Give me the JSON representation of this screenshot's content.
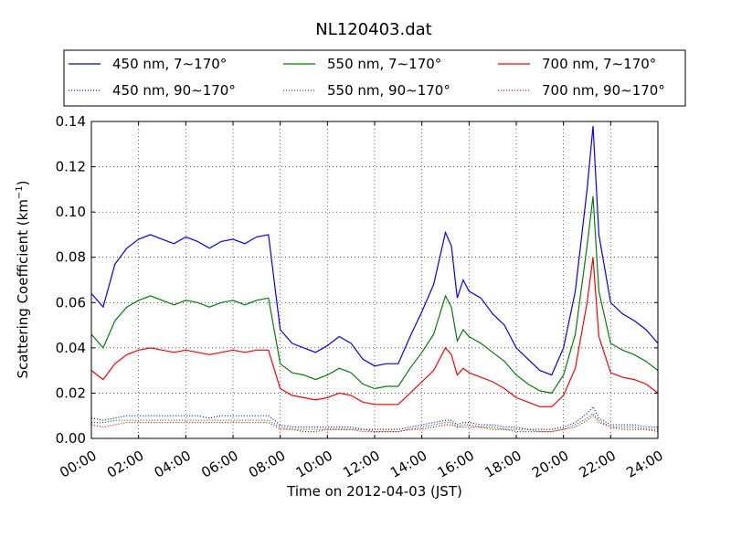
{
  "chart_data": {
    "type": "line",
    "title": "NL120403.dat",
    "xlabel": "Time on 2012-04-03 (JST)",
    "ylabel_main": "Scattering Coefficient (km",
    "ylabel_sup": "−1",
    "ylabel_end": ")",
    "xlim": [
      0,
      24
    ],
    "ylim": [
      0,
      0.14
    ],
    "grid": true,
    "legend_position": "top",
    "x_ticks": [
      "00:00",
      "02:00",
      "04:00",
      "06:00",
      "08:00",
      "10:00",
      "12:00",
      "14:00",
      "16:00",
      "18:00",
      "20:00",
      "22:00",
      "24:00"
    ],
    "y_ticks": [
      "0.00",
      "0.02",
      "0.04",
      "0.06",
      "0.08",
      "0.10",
      "0.12",
      "0.14"
    ],
    "x_tick_values": [
      0,
      2,
      4,
      6,
      8,
      10,
      12,
      14,
      16,
      18,
      20,
      22,
      24
    ],
    "y_tick_values": [
      0,
      0.02,
      0.04,
      0.06,
      0.08,
      0.1,
      0.12,
      0.14
    ],
    "x": [
      0,
      0.5,
      1,
      1.5,
      2,
      2.5,
      3,
      3.5,
      4,
      4.5,
      5,
      5.5,
      6,
      6.5,
      7,
      7.5,
      8,
      8.5,
      9,
      9.5,
      10,
      10.5,
      11,
      11.5,
      12,
      12.5,
      13,
      13.5,
      14,
      14.5,
      15,
      15.25,
      15.5,
      15.75,
      16,
      16.5,
      17,
      17.5,
      18,
      18.5,
      19,
      19.5,
      20,
      20.5,
      21,
      21.25,
      21.5,
      22,
      22.5,
      23,
      23.5,
      24
    ],
    "series": [
      {
        "name": "450 nm, 7∼170°",
        "color": "#0000ff",
        "style": "solid",
        "values": [
          0.064,
          0.058,
          0.077,
          0.084,
          0.088,
          0.09,
          0.088,
          0.086,
          0.089,
          0.087,
          0.084,
          0.087,
          0.088,
          0.086,
          0.089,
          0.09,
          0.048,
          0.042,
          0.04,
          0.038,
          0.041,
          0.045,
          0.042,
          0.035,
          0.032,
          0.033,
          0.033,
          0.045,
          0.056,
          0.068,
          0.091,
          0.085,
          0.062,
          0.07,
          0.065,
          0.062,
          0.055,
          0.05,
          0.04,
          0.035,
          0.03,
          0.028,
          0.04,
          0.065,
          0.11,
          0.138,
          0.09,
          0.06,
          0.055,
          0.052,
          0.048,
          0.042
        ]
      },
      {
        "name": "550 nm, 7∼170°",
        "color": "#008000",
        "style": "solid",
        "values": [
          0.046,
          0.04,
          0.052,
          0.058,
          0.061,
          0.063,
          0.061,
          0.059,
          0.061,
          0.06,
          0.058,
          0.06,
          0.061,
          0.059,
          0.061,
          0.062,
          0.033,
          0.029,
          0.028,
          0.026,
          0.028,
          0.031,
          0.029,
          0.024,
          0.022,
          0.023,
          0.023,
          0.031,
          0.038,
          0.046,
          0.063,
          0.058,
          0.043,
          0.048,
          0.045,
          0.042,
          0.038,
          0.034,
          0.028,
          0.024,
          0.021,
          0.02,
          0.028,
          0.046,
          0.085,
          0.107,
          0.065,
          0.042,
          0.039,
          0.037,
          0.034,
          0.03
        ]
      },
      {
        "name": "700 nm, 7∼170°",
        "color": "#ff0000",
        "style": "solid",
        "values": [
          0.03,
          0.026,
          0.033,
          0.037,
          0.039,
          0.04,
          0.039,
          0.038,
          0.039,
          0.038,
          0.037,
          0.038,
          0.039,
          0.038,
          0.039,
          0.039,
          0.022,
          0.019,
          0.018,
          0.017,
          0.018,
          0.02,
          0.019,
          0.016,
          0.015,
          0.015,
          0.015,
          0.02,
          0.025,
          0.03,
          0.04,
          0.037,
          0.028,
          0.031,
          0.029,
          0.027,
          0.025,
          0.022,
          0.018,
          0.016,
          0.014,
          0.014,
          0.019,
          0.031,
          0.06,
          0.08,
          0.045,
          0.029,
          0.027,
          0.026,
          0.024,
          0.02
        ]
      },
      {
        "name": "450 nm, 90∼170°",
        "color": "#0000ff",
        "style": "dotted",
        "values": [
          0.009,
          0.008,
          0.009,
          0.01,
          0.01,
          0.01,
          0.01,
          0.01,
          0.01,
          0.01,
          0.009,
          0.01,
          0.01,
          0.01,
          0.01,
          0.01,
          0.006,
          0.005,
          0.005,
          0.005,
          0.005,
          0.005,
          0.005,
          0.004,
          0.004,
          0.004,
          0.004,
          0.005,
          0.006,
          0.007,
          0.008,
          0.008,
          0.006,
          0.007,
          0.007,
          0.006,
          0.006,
          0.005,
          0.005,
          0.004,
          0.004,
          0.004,
          0.005,
          0.007,
          0.011,
          0.014,
          0.009,
          0.006,
          0.006,
          0.006,
          0.005,
          0.005
        ]
      },
      {
        "name": "550 nm, 90∼170°",
        "color": "#008000",
        "style": "dotted",
        "values": [
          0.007,
          0.007,
          0.008,
          0.008,
          0.008,
          0.008,
          0.008,
          0.008,
          0.008,
          0.008,
          0.008,
          0.008,
          0.008,
          0.008,
          0.008,
          0.008,
          0.005,
          0.004,
          0.004,
          0.004,
          0.004,
          0.004,
          0.004,
          0.004,
          0.003,
          0.003,
          0.003,
          0.004,
          0.005,
          0.006,
          0.007,
          0.007,
          0.005,
          0.006,
          0.006,
          0.005,
          0.005,
          0.004,
          0.004,
          0.004,
          0.003,
          0.003,
          0.004,
          0.006,
          0.009,
          0.011,
          0.008,
          0.005,
          0.005,
          0.005,
          0.004,
          0.004
        ]
      },
      {
        "name": "700 nm, 90∼170°",
        "color": "#ff0000",
        "style": "dotted",
        "values": [
          0.006,
          0.005,
          0.006,
          0.007,
          0.007,
          0.007,
          0.007,
          0.007,
          0.007,
          0.007,
          0.007,
          0.007,
          0.007,
          0.007,
          0.007,
          0.007,
          0.004,
          0.004,
          0.003,
          0.003,
          0.004,
          0.004,
          0.004,
          0.003,
          0.003,
          0.003,
          0.003,
          0.004,
          0.004,
          0.005,
          0.006,
          0.006,
          0.005,
          0.005,
          0.005,
          0.005,
          0.004,
          0.004,
          0.003,
          0.003,
          0.003,
          0.003,
          0.004,
          0.005,
          0.008,
          0.01,
          0.007,
          0.005,
          0.004,
          0.004,
          0.004,
          0.003
        ]
      }
    ]
  }
}
